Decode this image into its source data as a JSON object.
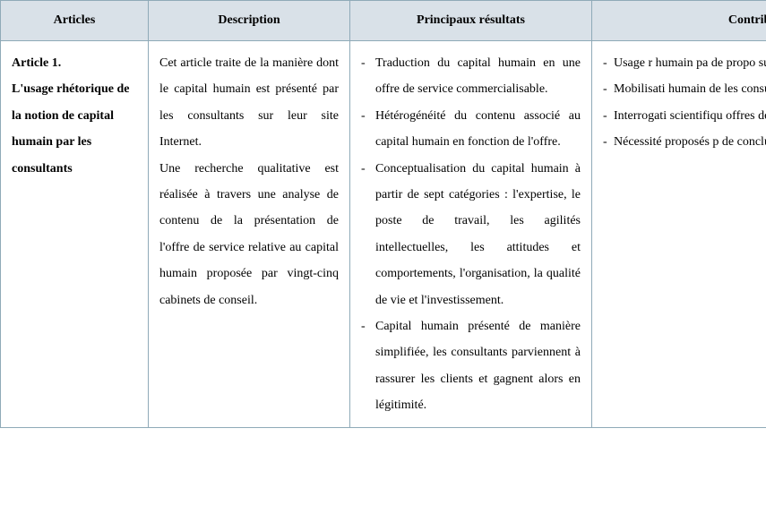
{
  "headers": {
    "col1": "Articles",
    "col2": "Description",
    "col3": "Principaux résultats",
    "col4": "Contribu"
  },
  "row": {
    "article_title_bold": "Article 1.",
    "article_title_rest": "L'usage rhétorique de la notion de capital humain par les consultants",
    "description_p1": "Cet article traite de la manière dont le capital humain est présenté par les consultants sur leur site Internet.",
    "description_p2": "Une recherche qualitative est réalisée à travers une analyse de contenu de la présentation de l'offre de service relative au capital humain proposée par vingt-cinq cabinets de conseil.",
    "results": [
      "Traduction du capital humain en une offre de service commercialisable.",
      "Hétérogénéité du contenu associé au capital humain en fonction de l'offre.",
      "Conceptualisation du capital humain à partir de sept catégories : l'expertise, le poste de travail, les agilités intellectuelles, les attitudes et comportements, l'organisation, la qualité de vie et l'investissement.",
      "Capital humain présenté de manière simplifiée, les consultants parviennent à rassurer les clients et gagnent alors en légitimité."
    ],
    "contrib": [
      "Usage r humain pa de propo susceptibl",
      "Mobilisati humain de les consul besoins.",
      "Interrogati scientifiqu offres de s consultant managéria",
      "Nécessité proposés p de conclur"
    ]
  },
  "style": {
    "header_bg": "#d9e1e8",
    "border_color": "#8faab8",
    "font_family": "Times New Roman",
    "base_fontsize": 14,
    "line_height": 2.1
  }
}
